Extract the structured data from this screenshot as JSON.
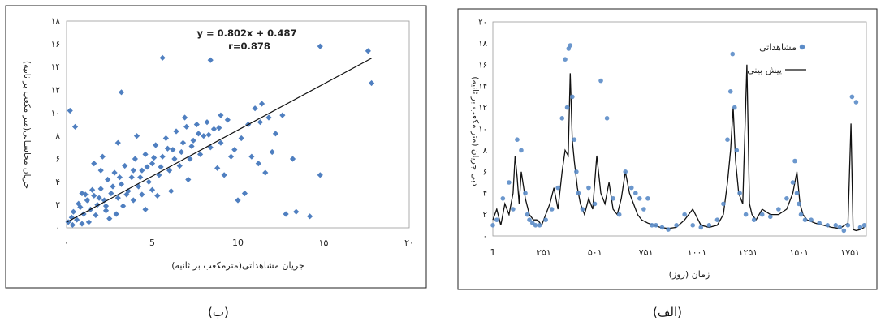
{
  "charts_meta": {
    "caption_right": "(الف)",
    "caption_left": "(ب)"
  },
  "chart_data": [
    {
      "id": "b",
      "type": "scatter",
      "xlabel": "جریان مشاهداتی(مترمکعب بر ثانیه)",
      "ylabel": "جریان محاسباتی(متر مکعب بر ثانیه)",
      "xlim": [
        0,
        20
      ],
      "ylim": [
        0,
        18
      ],
      "xticks": [
        {
          "v": 0,
          "label": "۰"
        },
        {
          "v": 5,
          "label": "5"
        },
        {
          "v": 10,
          "label": "10"
        },
        {
          "v": 15,
          "label": "۱۵"
        },
        {
          "v": 20,
          "label": "۲۰"
        }
      ],
      "yticks": [
        {
          "v": 0,
          "label": "۰"
        },
        {
          "v": 2,
          "label": "۲"
        },
        {
          "v": 4,
          "label": "۴"
        },
        {
          "v": 6,
          "label": "۶"
        },
        {
          "v": 8,
          "label": "۸"
        },
        {
          "v": 10,
          "label": "۱۰"
        },
        {
          "v": 12,
          "label": "۱۲"
        },
        {
          "v": 14,
          "label": "۱۴"
        },
        {
          "v": 16,
          "label": "۱۶"
        },
        {
          "v": 18,
          "label": "۱۸"
        }
      ],
      "equation": "y = 0.802x + 0.487",
      "r_label": "r=0.878",
      "fit": {
        "slope": 0.802,
        "intercept": 0.487,
        "x_range": [
          0,
          17.8
        ]
      },
      "points": [
        [
          0.2,
          10.2
        ],
        [
          0.5,
          8.8
        ],
        [
          0.1,
          0.5
        ],
        [
          0.3,
          0.9
        ],
        [
          0.4,
          1.4
        ],
        [
          0.6,
          0.7
        ],
        [
          0.8,
          1.8
        ],
        [
          1.0,
          1.2
        ],
        [
          1.2,
          2.4
        ],
        [
          0.9,
          3.0
        ],
        [
          1.4,
          1.6
        ],
        [
          1.6,
          2.8
        ],
        [
          1.8,
          2.0
        ],
        [
          2.0,
          3.4
        ],
        [
          2.2,
          2.4
        ],
        [
          2.4,
          4.2
        ],
        [
          2.6,
          3.0
        ],
        [
          2.8,
          4.8
        ],
        [
          3.0,
          2.6
        ],
        [
          3.2,
          3.8
        ],
        [
          3.4,
          5.4
        ],
        [
          3.6,
          3.2
        ],
        [
          3.8,
          4.4
        ],
        [
          4.0,
          6.0
        ],
        [
          4.2,
          3.6
        ],
        [
          4.4,
          5.0
        ],
        [
          4.6,
          6.4
        ],
        [
          4.8,
          4.0
        ],
        [
          5.0,
          5.6
        ],
        [
          5.2,
          7.2
        ],
        [
          5.4,
          4.6
        ],
        [
          5.6,
          6.2
        ],
        [
          5.8,
          7.8
        ],
        [
          6.0,
          5.0
        ],
        [
          6.2,
          6.8
        ],
        [
          6.4,
          8.4
        ],
        [
          6.6,
          5.4
        ],
        [
          6.8,
          7.4
        ],
        [
          7.0,
          8.8
        ],
        [
          7.2,
          6.0
        ],
        [
          7.4,
          7.6
        ],
        [
          7.6,
          9.0
        ],
        [
          7.8,
          6.4
        ],
        [
          8.0,
          8.0
        ],
        [
          8.2,
          9.2
        ],
        [
          8.4,
          7.0
        ],
        [
          8.6,
          8.6
        ],
        [
          9.0,
          7.4
        ],
        [
          9.4,
          9.4
        ],
        [
          9.8,
          6.8
        ],
        [
          10.2,
          7.8
        ],
        [
          10.6,
          9.0
        ],
        [
          11.0,
          10.4
        ],
        [
          11.4,
          10.8
        ],
        [
          11.8,
          9.6
        ],
        [
          12.2,
          8.2
        ],
        [
          12.6,
          9.8
        ],
        [
          11.2,
          5.6
        ],
        [
          10.4,
          3.0
        ],
        [
          9.6,
          6.2
        ],
        [
          10.0,
          2.4
        ],
        [
          12.8,
          1.2
        ],
        [
          13.4,
          1.4
        ],
        [
          14.2,
          1.0
        ],
        [
          14.8,
          4.6
        ],
        [
          14.8,
          15.8
        ],
        [
          17.6,
          15.4
        ],
        [
          17.8,
          12.6
        ],
        [
          3.2,
          11.8
        ],
        [
          5.6,
          14.8
        ],
        [
          8.4,
          14.6
        ],
        [
          1.6,
          5.6
        ],
        [
          2.1,
          6.2
        ],
        [
          2.9,
          1.2
        ],
        [
          1.3,
          0.5
        ],
        [
          2.5,
          0.8
        ],
        [
          4.6,
          1.6
        ],
        [
          5.3,
          2.8
        ],
        [
          6.1,
          3.2
        ],
        [
          7.1,
          4.2
        ],
        [
          8.8,
          5.2
        ],
        [
          9.2,
          4.6
        ],
        [
          0.7,
          2.1
        ],
        [
          1.1,
          2.9
        ],
        [
          1.5,
          3.3
        ],
        [
          1.9,
          2.6
        ],
        [
          2.3,
          1.9
        ],
        [
          2.7,
          3.6
        ],
        [
          3.1,
          4.4
        ],
        [
          3.5,
          2.9
        ],
        [
          3.9,
          5.0
        ],
        [
          4.3,
          4.4
        ],
        [
          4.7,
          5.3
        ],
        [
          5.1,
          6.1
        ],
        [
          5.5,
          5.3
        ],
        [
          5.9,
          6.9
        ],
        [
          6.3,
          6.0
        ],
        [
          6.7,
          6.6
        ],
        [
          7.3,
          7.1
        ],
        [
          7.7,
          8.2
        ],
        [
          8.3,
          8.1
        ],
        [
          8.9,
          8.7
        ],
        [
          0.35,
          0.25
        ],
        [
          0.9,
          0.35
        ],
        [
          1.7,
          1.1
        ],
        [
          2.3,
          1.5
        ],
        [
          3.3,
          1.9
        ],
        [
          3.9,
          2.4
        ],
        [
          4.4,
          2.9
        ],
        [
          5.0,
          3.3
        ],
        [
          12.0,
          6.6
        ],
        [
          13.2,
          6.0
        ],
        [
          11.6,
          4.8
        ],
        [
          10.8,
          6.2
        ],
        [
          9.0,
          9.8
        ],
        [
          11.3,
          9.2
        ],
        [
          3.0,
          7.4
        ],
        [
          4.1,
          8.0
        ],
        [
          2.0,
          5.0
        ],
        [
          6.9,
          9.6
        ]
      ]
    },
    {
      "id": "alef",
      "type": "line",
      "xlabel": "زمان (روز)",
      "ylabel": "دبی جریان (متر مکعب بر ثانیه)",
      "xlim": [
        1,
        1830
      ],
      "ylim": [
        0,
        20
      ],
      "xticks": [
        {
          "v": 1,
          "label": "1"
        },
        {
          "v": 251,
          "label": "۲۵۱"
        },
        {
          "v": 501,
          "label": "۵۰۱"
        },
        {
          "v": 751,
          "label": "۷۵۱"
        },
        {
          "v": 1001,
          "label": "۱۰۰۱"
        },
        {
          "v": 1251,
          "label": "۱۲۵۱"
        },
        {
          "v": 1501,
          "label": "۱۵۰۱"
        },
        {
          "v": 1751,
          "label": "۱۷۵۱"
        }
      ],
      "yticks": [
        {
          "v": 0,
          "label": "۰"
        },
        {
          "v": 2,
          "label": "۲"
        },
        {
          "v": 4,
          "label": "۴"
        },
        {
          "v": 6,
          "label": "۶"
        },
        {
          "v": 8,
          "label": "۸"
        },
        {
          "v": 10,
          "label": "۱۰"
        },
        {
          "v": 12,
          "label": "۱۲"
        },
        {
          "v": 14,
          "label": "۱۴"
        },
        {
          "v": 16,
          "label": "۱۶"
        },
        {
          "v": 18,
          "label": "۱۸"
        },
        {
          "v": 20,
          "label": "۲۰"
        }
      ],
      "legend": {
        "position": "top-right",
        "observed": "مشاهداتی",
        "predicted": "پیش بینی"
      },
      "series": [
        {
          "name": "مشاهداتی",
          "x": [
            1,
            20,
            50,
            80,
            100,
            120,
            140,
            160,
            170,
            180,
            195,
            210,
            230,
            260,
            290,
            320,
            340,
            355,
            365,
            372,
            380,
            390,
            400,
            410,
            420,
            440,
            470,
            500,
            530,
            560,
            590,
            620,
            650,
            680,
            700,
            720,
            740,
            760,
            780,
            800,
            830,
            860,
            900,
            940,
            980,
            1020,
            1060,
            1100,
            1130,
            1150,
            1165,
            1175,
            1185,
            1195,
            1210,
            1240,
            1280,
            1320,
            1360,
            1400,
            1440,
            1470,
            1480,
            1490,
            1500,
            1510,
            1530,
            1560,
            1600,
            1640,
            1680,
            1700,
            1720,
            1740,
            1760,
            1780,
            1800,
            1820
          ],
          "values": [
            1.0,
            1.5,
            3.5,
            5.0,
            2.5,
            9.0,
            8.0,
            4.0,
            2.0,
            1.5,
            1.2,
            1.0,
            1.0,
            1.5,
            2.5,
            4.5,
            11.0,
            16.5,
            12.0,
            17.5,
            17.8,
            13.0,
            9.0,
            6.0,
            4.0,
            2.5,
            4.5,
            3.0,
            14.5,
            11.0,
            3.5,
            2.0,
            6.0,
            4.5,
            4.0,
            3.5,
            2.5,
            3.5,
            1.0,
            1.0,
            0.8,
            0.6,
            1.0,
            2.0,
            1.0,
            0.8,
            1.0,
            1.5,
            3.0,
            9.0,
            13.5,
            17.0,
            12.0,
            8.0,
            4.0,
            2.0,
            1.5,
            2.0,
            1.8,
            2.5,
            3.5,
            5.0,
            7.0,
            4.0,
            3.0,
            2.0,
            1.5,
            1.5,
            1.2,
            1.0,
            1.0,
            0.8,
            0.5,
            1.0,
            13.0,
            12.5,
            0.8,
            1.0
          ]
        },
        {
          "name": "پیش بینی",
          "x": [
            1,
            20,
            40,
            60,
            80,
            100,
            110,
            120,
            130,
            140,
            160,
            180,
            200,
            220,
            240,
            260,
            280,
            300,
            320,
            340,
            355,
            370,
            380,
            390,
            400,
            415,
            430,
            450,
            470,
            490,
            510,
            530,
            550,
            570,
            590,
            610,
            630,
            650,
            670,
            690,
            710,
            730,
            760,
            790,
            820,
            860,
            900,
            940,
            980,
            1020,
            1060,
            1100,
            1130,
            1150,
            1165,
            1178,
            1190,
            1205,
            1225,
            1245,
            1258,
            1270,
            1290,
            1320,
            1360,
            1400,
            1440,
            1470,
            1490,
            1505,
            1520,
            1540,
            1580,
            1620,
            1660,
            1700,
            1740,
            1755,
            1765,
            1780,
            1800,
            1820
          ],
          "values": [
            1.5,
            2.5,
            1.0,
            3.0,
            2.0,
            4.0,
            7.5,
            5.5,
            3.0,
            6.0,
            3.5,
            2.0,
            1.5,
            1.5,
            1.0,
            2.0,
            3.0,
            4.5,
            2.5,
            6.0,
            8.0,
            7.5,
            15.2,
            9.0,
            7.0,
            4.5,
            3.0,
            2.0,
            3.5,
            2.5,
            7.5,
            4.0,
            3.0,
            5.0,
            2.5,
            2.0,
            3.5,
            6.0,
            4.0,
            3.0,
            2.0,
            1.5,
            1.2,
            1.0,
            0.8,
            0.7,
            0.8,
            1.5,
            2.5,
            1.0,
            0.8,
            1.0,
            2.0,
            5.0,
            8.0,
            12.0,
            7.0,
            4.0,
            3.0,
            16.0,
            3.0,
            2.0,
            1.5,
            2.5,
            2.0,
            2.0,
            2.5,
            4.0,
            6.0,
            3.0,
            2.0,
            1.5,
            1.2,
            1.0,
            0.8,
            0.7,
            1.2,
            10.5,
            0.6,
            0.5,
            0.6,
            0.8
          ]
        }
      ]
    }
  ]
}
